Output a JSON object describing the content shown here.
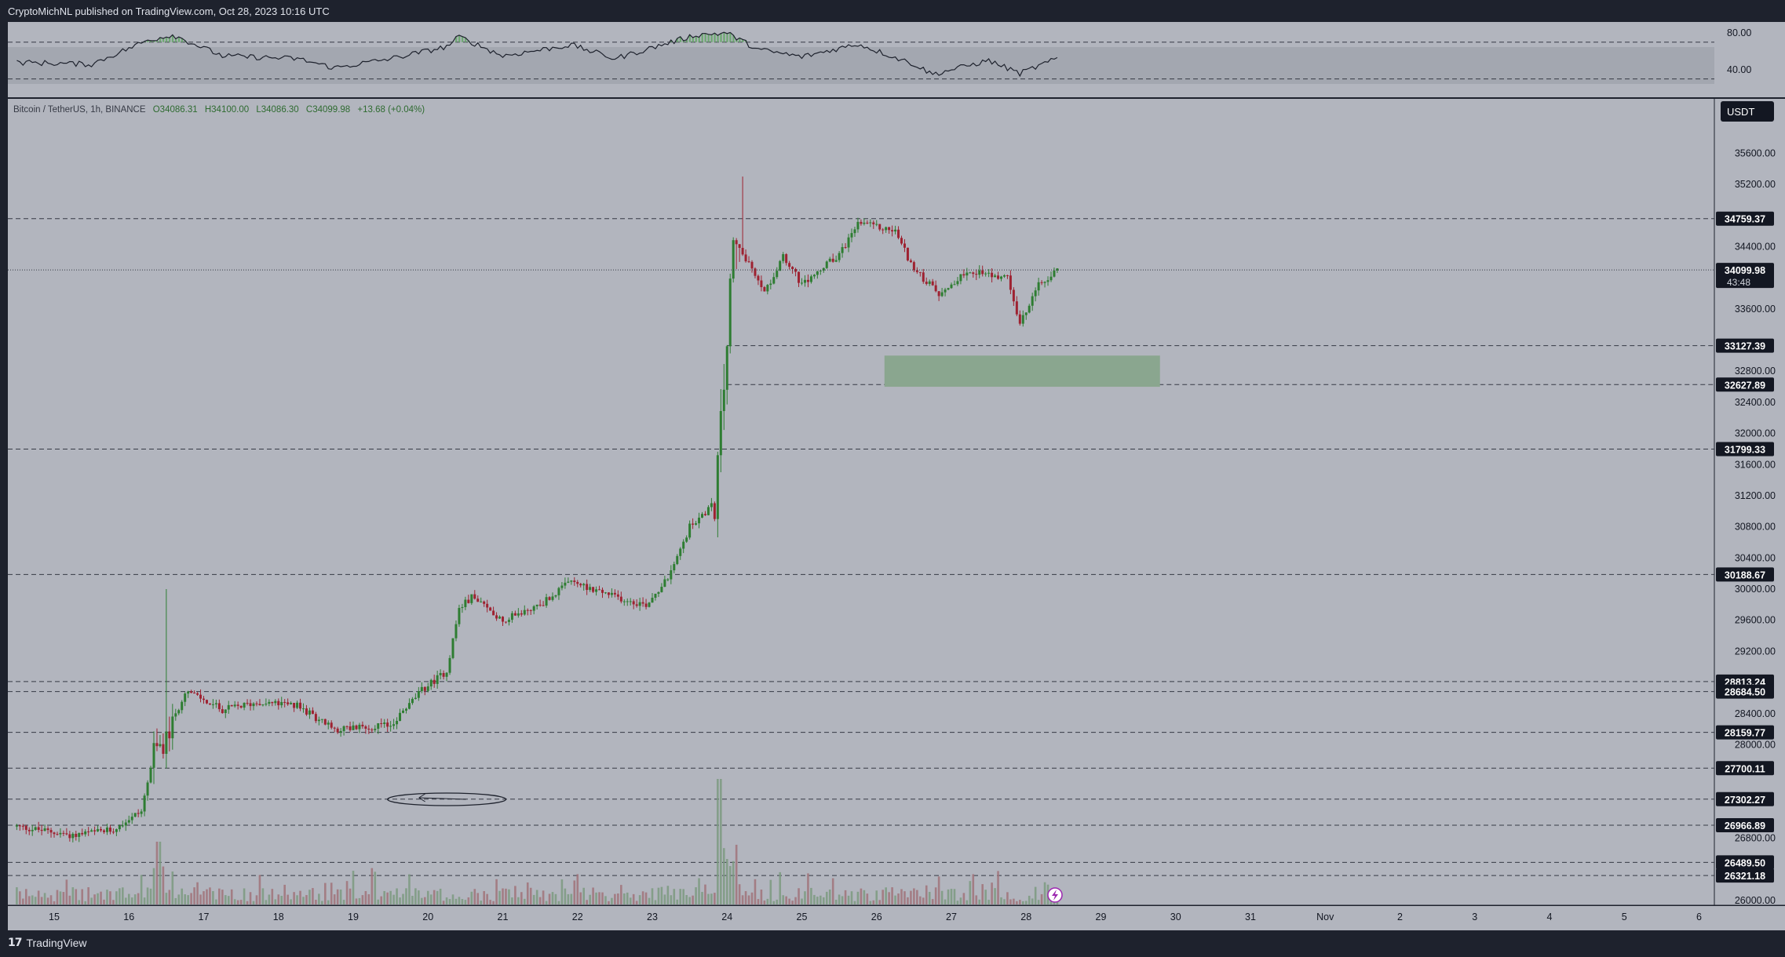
{
  "header": {
    "publisher_line": "CryptoMichNL published on TradingView.com, Oct 28, 2023 10:16 UTC"
  },
  "footer": {
    "logo_mark": "17",
    "logo_text": "TradingView"
  },
  "colors": {
    "pane": "#b2b5be",
    "frame": "#1e222d",
    "up": "#2e7d32",
    "down": "#9e2231",
    "zone": "#8aa68f",
    "line": "#363a45",
    "text": "#131722"
  },
  "chart_data": {
    "type": "candlestick",
    "symbol_line": "Bitcoin / TetherUS, 1h, BINANCE",
    "ohlc": {
      "o": "O34086.31",
      "h": "H34100.00",
      "l": "L34086.30",
      "c": "C34099.98",
      "change": "+13.68 (+0.04%)"
    },
    "currency_button": "USDT",
    "ylim": [
      25950,
      35950
    ],
    "y_ticks": [
      "35600.00",
      "35200.00",
      "34400.00",
      "33600.00",
      "32800.00",
      "32400.00",
      "32000.00",
      "31600.00",
      "31200.00",
      "30800.00",
      "30400.00",
      "30000.00",
      "29600.00",
      "29200.00",
      "28400.00",
      "28000.00",
      "26800.00",
      "26000.00"
    ],
    "x_ticks": [
      "15",
      "16",
      "17",
      "18",
      "19",
      "20",
      "21",
      "22",
      "23",
      "24",
      "25",
      "26",
      "27",
      "28",
      "29",
      "30",
      "31",
      "Nov",
      "2",
      "3",
      "4",
      "5",
      "6"
    ],
    "levels": [
      {
        "label": "34759.37",
        "value": 34759.37
      },
      {
        "label": "33127.39",
        "value": 33127.39
      },
      {
        "label": "32627.89",
        "value": 32627.89
      },
      {
        "label": "31799.33",
        "value": 31799.33
      },
      {
        "label": "30188.67",
        "value": 30188.67
      },
      {
        "label": "28813.24",
        "value": 28813.24
      },
      {
        "label": "28684.50",
        "value": 28684.5
      },
      {
        "label": "28159.77",
        "value": 28159.77
      },
      {
        "label": "27700.11",
        "value": 27700.11
      },
      {
        "label": "27302.27",
        "value": 27302.27
      },
      {
        "label": "26966.89",
        "value": 26966.89
      },
      {
        "label": "26489.50",
        "value": 26489.5
      },
      {
        "label": "26321.18",
        "value": 26321.18
      }
    ],
    "last_price": {
      "label": "34099.98",
      "value": 34099.98,
      "countdown": "43:48"
    },
    "zone": {
      "x_from": "Oct 26 00:00",
      "x_to": "Oct 30 00:00",
      "y_from": 32650,
      "y_to": 32950
    },
    "ellipse": {
      "x_from": "Oct 19 11:00",
      "x_to": "Oct 21 01:00",
      "y_center": 27300
    },
    "path_keypoints": [
      {
        "t": "Oct 14 12:00",
        "p": 26950
      },
      {
        "t": "Oct 15 06:00",
        "p": 26840
      },
      {
        "t": "Oct 15 18:00",
        "p": 26900
      },
      {
        "t": "Oct 16 04:00",
        "p": 27150
      },
      {
        "t": "Oct 16 08:00",
        "p": 27900
      },
      {
        "t": "Oct 16 12:00",
        "p": 28050
      },
      {
        "t": "Oct 16 18:00",
        "p": 28700
      },
      {
        "t": "Oct 17 06:00",
        "p": 28450
      },
      {
        "t": "Oct 17 18:00",
        "p": 28550
      },
      {
        "t": "Oct 18 06:00",
        "p": 28500
      },
      {
        "t": "Oct 18 18:00",
        "p": 28200
      },
      {
        "t": "Oct 19 12:00",
        "p": 28250
      },
      {
        "t": "Oct 19 22:00",
        "p": 28700
      },
      {
        "t": "Oct 20 06:00",
        "p": 28950
      },
      {
        "t": "Oct 20 10:00",
        "p": 29750
      },
      {
        "t": "Oct 20 14:00",
        "p": 29900
      },
      {
        "t": "Oct 21 00:00",
        "p": 29600
      },
      {
        "t": "Oct 21 12:00",
        "p": 29800
      },
      {
        "t": "Oct 21 22:00",
        "p": 30100
      },
      {
        "t": "Oct 22 12:00",
        "p": 29900
      },
      {
        "t": "Oct 22 22:00",
        "p": 29800
      },
      {
        "t": "Oct 23 06:00",
        "p": 30200
      },
      {
        "t": "Oct 23 12:00",
        "p": 30800
      },
      {
        "t": "Oct 23 20:00",
        "p": 31100
      },
      {
        "t": "Oct 23 23:00",
        "p": 32600
      },
      {
        "t": "Oct 24 02:00",
        "p": 34400
      },
      {
        "t": "Oct 24 06:00",
        "p": 34250
      },
      {
        "t": "Oct 24 12:00",
        "p": 33800
      },
      {
        "t": "Oct 24 18:00",
        "p": 34300
      },
      {
        "t": "Oct 25 00:00",
        "p": 33900
      },
      {
        "t": "Oct 25 12:00",
        "p": 34300
      },
      {
        "t": "Oct 25 18:00",
        "p": 34700
      },
      {
        "t": "Oct 26 06:00",
        "p": 34600
      },
      {
        "t": "Oct 26 12:00",
        "p": 34100
      },
      {
        "t": "Oct 26 20:00",
        "p": 33800
      },
      {
        "t": "Oct 27 06:00",
        "p": 34100
      },
      {
        "t": "Oct 27 18:00",
        "p": 34000
      },
      {
        "t": "Oct 27 22:00",
        "p": 33400
      },
      {
        "t": "Oct 28 04:00",
        "p": 33900
      },
      {
        "t": "Oct 28 10:00",
        "p": 34100
      }
    ],
    "rsi": {
      "ticks": [
        "80.00",
        "40.00"
      ],
      "bands": [
        70,
        30
      ],
      "ylim": [
        10,
        92
      ],
      "keypoints": [
        {
          "t": "Oct 14 12:00",
          "v": 48
        },
        {
          "t": "Oct 15 12:00",
          "v": 46
        },
        {
          "t": "Oct 16 06:00",
          "v": 72
        },
        {
          "t": "Oct 16 14:00",
          "v": 78
        },
        {
          "t": "Oct 17 06:00",
          "v": 55
        },
        {
          "t": "Oct 18 06:00",
          "v": 52
        },
        {
          "t": "Oct 18 18:00",
          "v": 42
        },
        {
          "t": "Oct 19 12:00",
          "v": 52
        },
        {
          "t": "Oct 20 06:00",
          "v": 65
        },
        {
          "t": "Oct 20 10:00",
          "v": 76
        },
        {
          "t": "Oct 21 00:00",
          "v": 55
        },
        {
          "t": "Oct 21 22:00",
          "v": 67
        },
        {
          "t": "Oct 22 12:00",
          "v": 52
        },
        {
          "t": "Oct 23 04:00",
          "v": 68
        },
        {
          "t": "Oct 23 14:00",
          "v": 78
        },
        {
          "t": "Oct 24 00:00",
          "v": 80
        },
        {
          "t": "Oct 24 10:00",
          "v": 62
        },
        {
          "t": "Oct 25 00:00",
          "v": 54
        },
        {
          "t": "Oct 25 18:00",
          "v": 68
        },
        {
          "t": "Oct 26 12:00",
          "v": 46
        },
        {
          "t": "Oct 26 18:00",
          "v": 35
        },
        {
          "t": "Oct 27 12:00",
          "v": 50
        },
        {
          "t": "Oct 27 22:00",
          "v": 36
        },
        {
          "t": "Oct 28 10:00",
          "v": 52
        }
      ]
    }
  }
}
